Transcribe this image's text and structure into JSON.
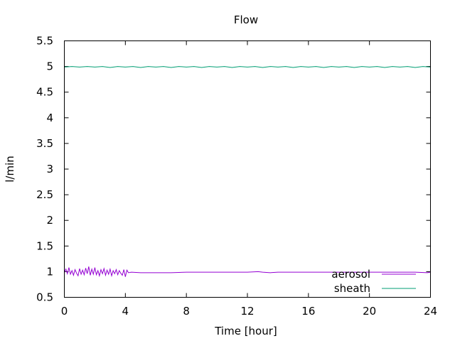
{
  "chart_data": {
    "type": "line",
    "title": "Flow",
    "xlabel": "Time [hour]",
    "ylabel": "l/min",
    "xlim": [
      0,
      24
    ],
    "ylim": [
      0.5,
      5.5
    ],
    "x_ticks": [
      0,
      4,
      8,
      12,
      16,
      20,
      24
    ],
    "y_ticks": [
      0.5,
      1,
      1.5,
      2,
      2.5,
      3,
      3.5,
      4,
      4.5,
      5,
      5.5
    ],
    "y_tick_labels": [
      "0.5",
      "1",
      "1.5",
      "2",
      "2.5",
      "3",
      "3.5",
      "4",
      "4.5",
      "5",
      "5.5"
    ],
    "grid": false,
    "legend_position": "bottom-right",
    "series": [
      {
        "name": "aerosol",
        "color": "#9400d3",
        "points": [
          [
            0.0,
            0.98
          ],
          [
            0.1,
            1.05
          ],
          [
            0.2,
            0.96
          ],
          [
            0.3,
            1.08
          ],
          [
            0.4,
            0.95
          ],
          [
            0.5,
            1.02
          ],
          [
            0.6,
            0.93
          ],
          [
            0.7,
            1.04
          ],
          [
            0.8,
            0.97
          ],
          [
            0.9,
            0.92
          ],
          [
            1.0,
            1.06
          ],
          [
            1.1,
            0.95
          ],
          [
            1.2,
            1.03
          ],
          [
            1.3,
            0.94
          ],
          [
            1.4,
            1.07
          ],
          [
            1.5,
            0.96
          ],
          [
            1.6,
            1.1
          ],
          [
            1.7,
            0.93
          ],
          [
            1.8,
            1.05
          ],
          [
            1.9,
            0.95
          ],
          [
            2.0,
            1.08
          ],
          [
            2.1,
            0.94
          ],
          [
            2.2,
            1.02
          ],
          [
            2.3,
            0.92
          ],
          [
            2.4,
            1.04
          ],
          [
            2.5,
            0.96
          ],
          [
            2.6,
            1.06
          ],
          [
            2.7,
            0.93
          ],
          [
            2.8,
            1.03
          ],
          [
            2.9,
            0.95
          ],
          [
            3.0,
            1.05
          ],
          [
            3.1,
            0.92
          ],
          [
            3.2,
            1.02
          ],
          [
            3.3,
            0.96
          ],
          [
            3.4,
            1.04
          ],
          [
            3.5,
            0.94
          ],
          [
            3.6,
            1.02
          ],
          [
            3.7,
            0.97
          ],
          [
            3.8,
            0.93
          ],
          [
            3.9,
            1.04
          ],
          [
            4.0,
            0.9
          ],
          [
            4.1,
            1.03
          ],
          [
            4.2,
            0.98
          ],
          [
            4.4,
            0.99
          ],
          [
            5.0,
            0.98
          ],
          [
            6.0,
            0.98
          ],
          [
            7.0,
            0.98
          ],
          [
            8.0,
            0.99
          ],
          [
            9.0,
            0.99
          ],
          [
            10.0,
            0.99
          ],
          [
            11.0,
            0.99
          ],
          [
            12.0,
            0.99
          ],
          [
            12.7,
            1.0
          ],
          [
            13.0,
            0.99
          ],
          [
            13.5,
            0.98
          ],
          [
            14.0,
            0.99
          ],
          [
            15.0,
            0.99
          ],
          [
            16.0,
            0.99
          ],
          [
            17.0,
            0.99
          ],
          [
            18.0,
            0.99
          ],
          [
            19.0,
            0.99
          ],
          [
            20.0,
            0.99
          ],
          [
            21.0,
            0.99
          ],
          [
            22.0,
            0.99
          ],
          [
            23.0,
            0.99
          ],
          [
            23.8,
            0.98
          ],
          [
            24.0,
            0.99
          ]
        ]
      },
      {
        "name": "sheath",
        "color": "#009e73",
        "points": [
          [
            0.0,
            4.99
          ],
          [
            0.5,
            5.0
          ],
          [
            1.0,
            4.99
          ],
          [
            1.5,
            5.0
          ],
          [
            2.0,
            4.99
          ],
          [
            2.5,
            5.0
          ],
          [
            3.0,
            4.98
          ],
          [
            3.5,
            5.0
          ],
          [
            4.0,
            4.99
          ],
          [
            4.5,
            5.0
          ],
          [
            5.0,
            4.98
          ],
          [
            5.5,
            5.0
          ],
          [
            6.0,
            4.99
          ],
          [
            6.5,
            5.0
          ],
          [
            7.0,
            4.98
          ],
          [
            7.5,
            5.0
          ],
          [
            8.0,
            4.99
          ],
          [
            8.5,
            5.0
          ],
          [
            9.0,
            4.98
          ],
          [
            9.5,
            5.0
          ],
          [
            10.0,
            4.99
          ],
          [
            10.5,
            5.0
          ],
          [
            11.0,
            4.98
          ],
          [
            11.5,
            5.0
          ],
          [
            12.0,
            4.99
          ],
          [
            12.5,
            5.0
          ],
          [
            13.0,
            4.98
          ],
          [
            13.5,
            5.0
          ],
          [
            14.0,
            4.99
          ],
          [
            14.5,
            5.0
          ],
          [
            15.0,
            4.98
          ],
          [
            15.5,
            5.0
          ],
          [
            16.0,
            4.99
          ],
          [
            16.5,
            5.0
          ],
          [
            17.0,
            4.98
          ],
          [
            17.5,
            5.0
          ],
          [
            18.0,
            4.99
          ],
          [
            18.5,
            5.0
          ],
          [
            19.0,
            4.98
          ],
          [
            19.5,
            5.0
          ],
          [
            20.0,
            4.99
          ],
          [
            20.5,
            5.0
          ],
          [
            21.0,
            4.98
          ],
          [
            21.5,
            5.0
          ],
          [
            22.0,
            4.99
          ],
          [
            22.5,
            5.0
          ],
          [
            23.0,
            4.98
          ],
          [
            23.5,
            5.0
          ],
          [
            24.0,
            4.99
          ]
        ]
      }
    ]
  }
}
